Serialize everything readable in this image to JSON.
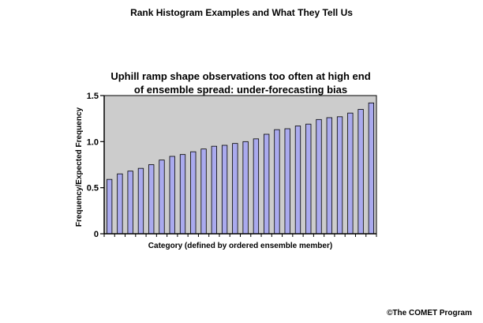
{
  "header": {
    "title": "Rank Histogram Examples and What They Tell Us"
  },
  "footer": {
    "credit": "©The COMET Program"
  },
  "chart_data": {
    "type": "bar",
    "title_line1": "Uphill ramp shape observations too often at high end",
    "title_line2": "of ensemble spread: under-forecasting bias",
    "xlabel": "Category (defined by ordered ensemble member)",
    "ylabel": "Frequency/Expected Frequency",
    "ylim": [
      0,
      1.5
    ],
    "yticks": [
      0,
      0.5,
      1.0,
      1.5
    ],
    "ytick_labels": [
      "0",
      "0.5",
      "1.0",
      "1.5"
    ],
    "grid": false,
    "plot_background": "#cccccc",
    "bar_color": "#aaaaee",
    "values": [
      0.59,
      0.65,
      0.68,
      0.71,
      0.75,
      0.8,
      0.84,
      0.86,
      0.89,
      0.92,
      0.95,
      0.96,
      0.98,
      1.0,
      1.03,
      1.08,
      1.13,
      1.14,
      1.17,
      1.19,
      1.24,
      1.26,
      1.27,
      1.31,
      1.35,
      1.42
    ]
  }
}
